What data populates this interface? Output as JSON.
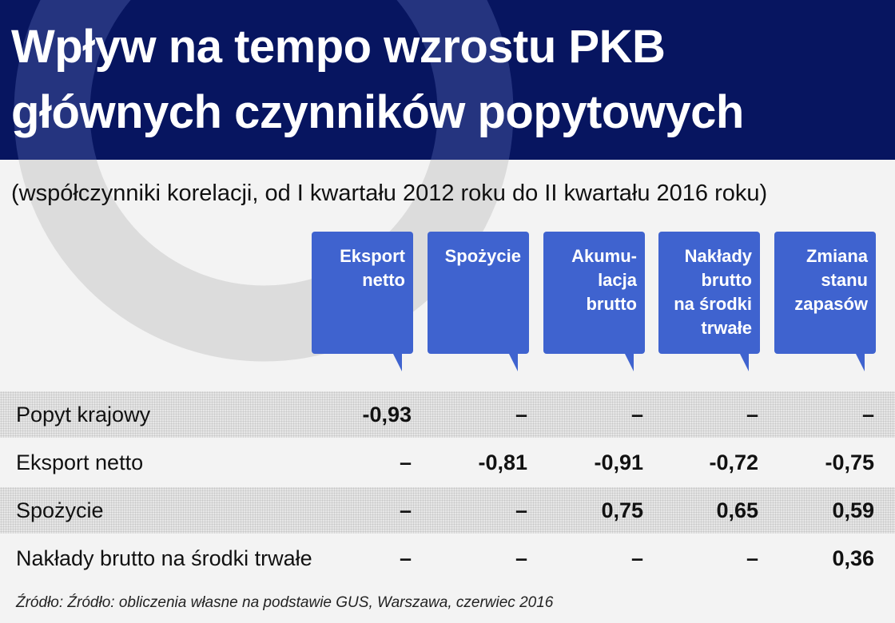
{
  "title": {
    "line1": "Wpływ na tempo wzrostu PKB",
    "line2": "głównych czynników popytowych"
  },
  "subtitle": "(współczynniki korelacji, od I kwartału 2012 roku do II kwartału 2016 roku)",
  "colors": {
    "header_bg": "#071560",
    "column_header_bg": "#3f63cf",
    "page_bg": "#f3f3f3",
    "logo_ring": "#d9d9d9",
    "logo_ring_on_header": "#2a3a85"
  },
  "chart_data": {
    "type": "table",
    "columns": [
      "Eksport\nnetto",
      "Spożycie",
      "Akumu-\nlacja\nbrutto",
      "Nakłady\nbrutto\nna środki\ntrwałe",
      "Zmiana\nstanu\nzapasów"
    ],
    "rows": [
      {
        "label": "Popyt krajowy",
        "values": [
          "-0,93",
          "–",
          "–",
          "–",
          "–"
        ]
      },
      {
        "label": "Eksport netto",
        "values": [
          "–",
          "-0,81",
          "-0,91",
          "-0,72",
          "-0,75"
        ]
      },
      {
        "label": "Spożycie",
        "values": [
          "–",
          "–",
          "0,75",
          "0,65",
          "0,59"
        ]
      },
      {
        "label": "Nakłady brutto na środki trwałe",
        "values": [
          "–",
          "–",
          "–",
          "–",
          "0,36"
        ]
      }
    ]
  },
  "source": "Źródło: Źródło: obliczenia własne na podstawie GUS, Warszawa, czerwiec 2016"
}
